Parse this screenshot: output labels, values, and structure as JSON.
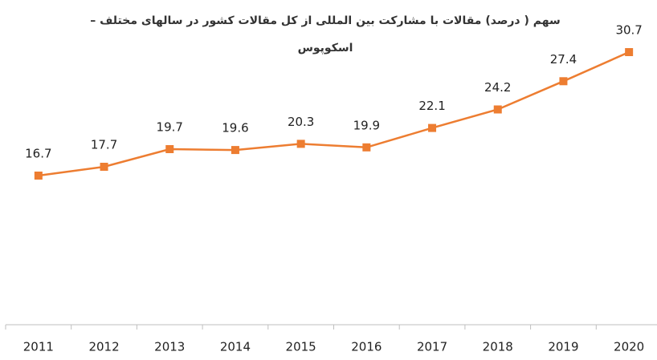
{
  "chart_data": {
    "type": "line",
    "title": [
      "سهم ( درصد) مقالات با مشارکت بین المللی از کل مقالات کشور در سالهای مختلف –",
      "اسکوپوس"
    ],
    "categories": [
      "2011",
      "2012",
      "2013",
      "2014",
      "2015",
      "2016",
      "2017",
      "2018",
      "2019",
      "2020"
    ],
    "values": [
      16.7,
      17.7,
      19.7,
      19.6,
      20.3,
      19.9,
      22.1,
      24.2,
      27.4,
      30.7
    ],
    "color": "#ed7d31",
    "ylim": [
      0,
      35
    ]
  }
}
